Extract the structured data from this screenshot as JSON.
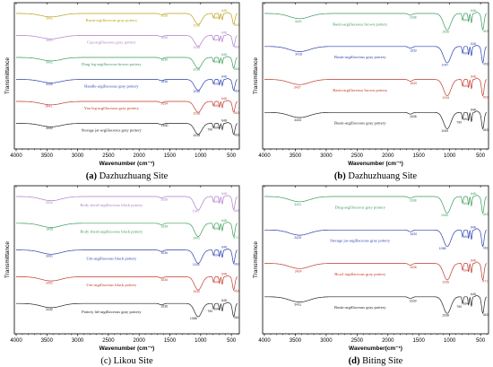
{
  "chart_data": [
    {
      "type": "line",
      "panel": "a",
      "caption_letter": "(a)",
      "caption_text": "Dazhuzhuang Site",
      "caption_letter_bold": true,
      "xlabel": "Wavenumber (cm⁻¹)",
      "xlabel_bold": true,
      "ylabel": "Transmittance",
      "xlim": [
        4000,
        400
      ],
      "x_ticks": [
        "4000",
        "3500",
        "3000",
        "2500",
        "2000",
        "1500",
        "1000",
        "500"
      ],
      "series": [
        {
          "name": "Basin-argillaceous gray pottery",
          "color": "#b8a21a",
          "peaks": [
            "3431",
            "1636",
            "1036",
            "648",
            "694",
            "463"
          ]
        },
        {
          "name": "Cup-argillaceous gray pottery",
          "color": "#b07cc9",
          "peaks": [
            "3431",
            "1636",
            "1036",
            "648",
            "694",
            "463"
          ]
        },
        {
          "name": "Ding leg-argillaceous brown pottery",
          "color": "#3a9b5a",
          "peaks": [
            "3431",
            "1636",
            "1036",
            "648",
            "694",
            "463"
          ]
        },
        {
          "name": "Handle-argillaceous gray pottery",
          "color": "#2a3fae",
          "peaks": [
            "3435",
            "1636",
            "1038",
            "648",
            "694",
            "463"
          ]
        },
        {
          "name": "Yan leg-argillaceous gray pottery",
          "color": "#c0392b",
          "peaks": [
            "3441",
            "1634",
            "1038",
            "648",
            "694",
            "463"
          ]
        },
        {
          "name": "Storage jar-argillaceous gray pottery",
          "color": "#222222",
          "peaks": [
            "3432",
            "1630",
            "1038",
            "790",
            "648",
            "694",
            "463"
          ]
        }
      ]
    },
    {
      "type": "line",
      "panel": "b",
      "caption_letter": "(b)",
      "caption_text": "Dazhuzhuang Site",
      "caption_letter_bold": true,
      "xlabel": "Wavenumber (cm⁻¹)",
      "xlabel_bold": true,
      "ylabel": "Transmittance",
      "xlim": [
        4000,
        400
      ],
      "x_ticks": [
        "4000",
        "3500",
        "3000",
        "2500",
        "2000",
        "1500",
        "1000",
        "500"
      ],
      "series": [
        {
          "name": "Basin-argillaceous brown pottery",
          "color": "#3a9b5a",
          "peaks": [
            "3421",
            "1638",
            "1036",
            "648",
            "694",
            "463"
          ]
        },
        {
          "name": "Basin-argillaceous gray pottery",
          "color": "#2a3fae",
          "peaks": [
            "3418",
            "1632",
            "1047",
            "648",
            "694",
            "459"
          ]
        },
        {
          "name": "Basin-argillaceous brown pottery",
          "color": "#c0392b",
          "peaks": [
            "3437",
            "1630",
            "1034",
            "648",
            "694",
            "463"
          ]
        },
        {
          "name": "Basin-argillaceous gray pottery",
          "color": "#222222",
          "peaks": [
            "3433",
            "1636",
            "1049",
            "790",
            "648",
            "694",
            "463"
          ]
        }
      ]
    },
    {
      "type": "line",
      "panel": "c",
      "caption_letter": "(c)",
      "caption_text": "Likou Site",
      "caption_letter_bold": false,
      "xlabel": "Wavenumber (cm⁻¹)",
      "xlabel_bold": true,
      "ylabel": "Transmittance",
      "xlim": [
        4000,
        400
      ],
      "x_ticks": [
        "4000",
        "3500",
        "3000",
        "2500",
        "2000",
        "1500",
        "1000",
        "500"
      ],
      "series": [
        {
          "name": "Body sherd-argillaceous black pottery",
          "color": "#b07cc9",
          "peaks": [
            "3433",
            "1638",
            "1047",
            "648",
            "694",
            "463"
          ]
        },
        {
          "name": "Body sherd-argillaceous black pottery",
          "color": "#3a9b5a",
          "peaks": [
            "3426",
            "1634",
            "1041",
            "648",
            "694",
            "471"
          ]
        },
        {
          "name": "Urn-argillaceous black pottery",
          "color": "#2a3fae",
          "peaks": [
            "3431",
            "1636",
            "1045",
            "648",
            "694",
            "463"
          ]
        },
        {
          "name": "Urn-argillaceous black pottery",
          "color": "#c0392b",
          "peaks": [
            "3431",
            "1636",
            "1040",
            "648",
            "694",
            "463"
          ]
        },
        {
          "name": "Pottery lid-argillaceous gray pottery",
          "color": "#222222",
          "peaks": [
            "3432",
            "1636",
            "1088",
            "790",
            "648",
            "694",
            "461"
          ]
        }
      ]
    },
    {
      "type": "line",
      "panel": "d",
      "caption_letter": "(d)",
      "caption_text": "Biting Site",
      "caption_letter_bold": true,
      "xlabel": "Wavenumber(cm⁻¹)",
      "xlabel_bold": false,
      "ylabel": "Transmittance",
      "xlim": [
        4000,
        400
      ],
      "x_ticks": [
        "4000",
        "3500",
        "3000",
        "2500",
        "2000",
        "1500",
        "1000",
        "500"
      ],
      "series": [
        {
          "name": "Ding-argillaceous gray pottery",
          "color": "#3a9b5a",
          "peaks": [
            "3431",
            "1638",
            "1055",
            "648",
            "694",
            "463"
          ]
        },
        {
          "name": "Storage jar-argillaceous gray pottery",
          "color": "#2a3fae",
          "peaks": [
            "3429",
            "1630",
            "1088",
            "648",
            "694",
            "461"
          ]
        },
        {
          "name": "Bowl-argillaceous gray pottery",
          "color": "#c0392b",
          "peaks": [
            "3424",
            "1636",
            "1036",
            "648",
            "694",
            "471"
          ]
        },
        {
          "name": "Basin-argillaceous gray pottery",
          "color": "#222222",
          "peaks": [
            "3431",
            "1639",
            "1038",
            "790",
            "648",
            "694",
            "463"
          ]
        }
      ]
    }
  ]
}
